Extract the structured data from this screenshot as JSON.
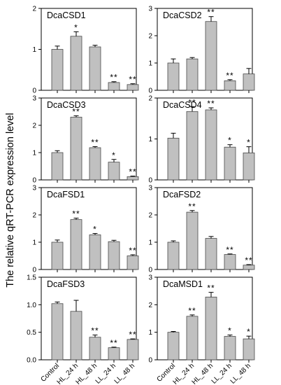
{
  "ylabel": "The relative qRT-PCR expression level",
  "chart_data": [
    {
      "type": "bar",
      "title": "DcaCSD1",
      "categories": [
        "Control",
        "HL_24 h",
        "HL_48 h",
        "LL_24 h",
        "LL_48 h"
      ],
      "values": [
        1.0,
        1.32,
        1.06,
        0.19,
        0.14
      ],
      "errors": [
        0.08,
        0.11,
        0.04,
        0.02,
        0.02
      ],
      "significance": [
        "",
        "*",
        "",
        "**",
        "**"
      ],
      "ylim": [
        0,
        2
      ],
      "yticks": [
        "0",
        "1",
        "2"
      ]
    },
    {
      "type": "bar",
      "title": "DcaCSD2",
      "categories": [
        "Control",
        "HL_24 h",
        "HL_48 h",
        "LL_24 h",
        "LL_48 h"
      ],
      "values": [
        1.0,
        1.15,
        2.52,
        0.35,
        0.6
      ],
      "errors": [
        0.15,
        0.05,
        0.18,
        0.04,
        0.2
      ],
      "significance": [
        "",
        "",
        "**",
        "**",
        ""
      ],
      "ylim": [
        0,
        3
      ],
      "yticks": [
        "0",
        "1",
        "2",
        "3"
      ]
    },
    {
      "type": "bar",
      "title": "DcaCSD3",
      "categories": [
        "Control",
        "HL_24 h",
        "HL_48 h",
        "LL_24 h",
        "LL_48 h"
      ],
      "values": [
        1.0,
        2.3,
        1.18,
        0.65,
        0.12
      ],
      "errors": [
        0.07,
        0.05,
        0.04,
        0.1,
        0.02
      ],
      "significance": [
        "",
        "**",
        "**",
        "*",
        "**"
      ],
      "ylim": [
        0,
        3
      ],
      "yticks": [
        "0",
        "1",
        "2",
        "3"
      ]
    },
    {
      "type": "bar",
      "title": "DcaCSD4",
      "categories": [
        "Control",
        "HL_24 h",
        "HL_48 h",
        "LL_24 h",
        "LL_48 h"
      ],
      "values": [
        1.02,
        1.67,
        1.71,
        0.8,
        0.66
      ],
      "errors": [
        0.12,
        0.12,
        0.05,
        0.06,
        0.15
      ],
      "significance": [
        "",
        "**",
        "**",
        "*",
        "*"
      ],
      "ylim": [
        0,
        2
      ],
      "yticks": [
        "0",
        "1",
        "2"
      ]
    },
    {
      "type": "bar",
      "title": "DcaFSD1",
      "categories": [
        "Control",
        "HL_24 h",
        "HL_48 h",
        "LL_24 h",
        "LL_48 h"
      ],
      "values": [
        1.0,
        1.83,
        1.27,
        1.02,
        0.5
      ],
      "errors": [
        0.08,
        0.05,
        0.05,
        0.05,
        0.04
      ],
      "significance": [
        "",
        "**",
        "*",
        "",
        "**"
      ],
      "ylim": [
        0,
        3
      ],
      "yticks": [
        "0",
        "1",
        "2",
        "3"
      ]
    },
    {
      "type": "bar",
      "title": "DcaFSD2",
      "categories": [
        "Control",
        "HL_24 h",
        "HL_48 h",
        "LL_24 h",
        "LL_48 h"
      ],
      "values": [
        1.0,
        2.1,
        1.14,
        0.55,
        0.16
      ],
      "errors": [
        0.05,
        0.06,
        0.07,
        0.02,
        0.02
      ],
      "significance": [
        "",
        "**",
        "",
        "**",
        "**"
      ],
      "ylim": [
        0,
        3
      ],
      "yticks": [
        "0",
        "1",
        "2",
        "3"
      ]
    },
    {
      "type": "bar",
      "title": "DcaFSD3",
      "categories": [
        "Control",
        "HL_24 h",
        "HL_48 h",
        "LL_24 h",
        "LL_48 h"
      ],
      "values": [
        1.02,
        0.88,
        0.41,
        0.22,
        0.37
      ],
      "errors": [
        0.03,
        0.2,
        0.04,
        0.01,
        0.01
      ],
      "significance": [
        "",
        "",
        "**",
        "**",
        "**"
      ],
      "ylim": [
        0,
        1.5
      ],
      "yticks": [
        "0.0",
        "0.5",
        "1.0",
        "1.5"
      ]
    },
    {
      "type": "bar",
      "title": "DcaMSD1",
      "categories": [
        "Control",
        "HL_24 h",
        "HL_48 h",
        "LL_24 h",
        "LL_48 h"
      ],
      "values": [
        1.0,
        1.58,
        2.28,
        0.85,
        0.76
      ],
      "errors": [
        0.03,
        0.05,
        0.17,
        0.05,
        0.1
      ],
      "significance": [
        "",
        "**",
        "**",
        "*",
        "*"
      ],
      "ylim": [
        0,
        3
      ],
      "yticks": [
        "0",
        "1",
        "2",
        "3"
      ]
    }
  ]
}
